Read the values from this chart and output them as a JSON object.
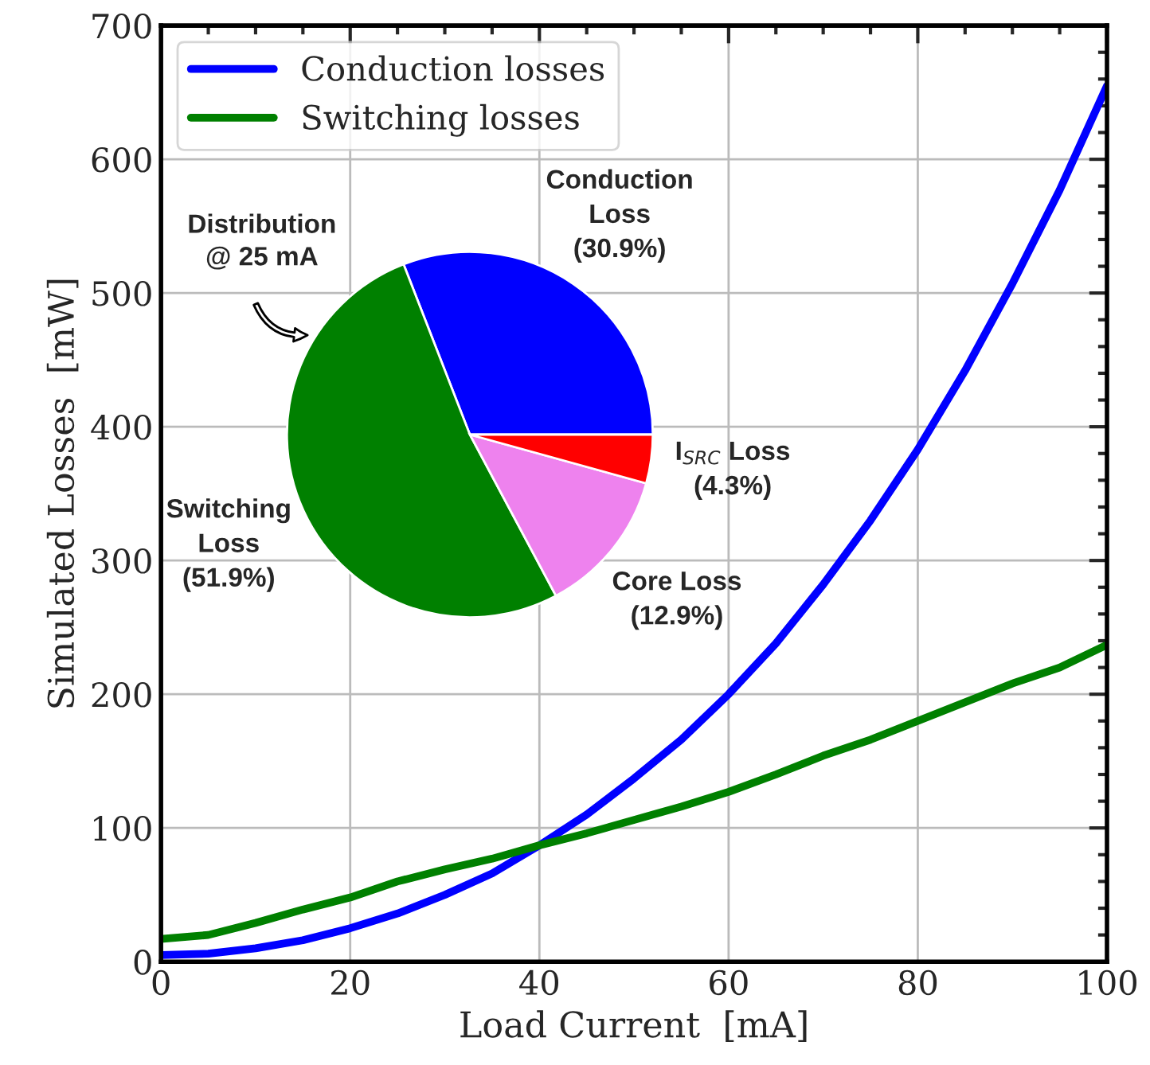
{
  "chart_data": [
    {
      "type": "line",
      "xlabel": "Load Current  [mA]",
      "ylabel": "Simulated Losses  [mW]",
      "x": [
        0,
        5,
        10,
        15,
        20,
        25,
        30,
        35,
        40,
        45,
        50,
        55,
        60,
        65,
        70,
        75,
        80,
        85,
        90,
        95,
        100
      ],
      "series": [
        {
          "name": "Conduction losses",
          "color": "#0000ff",
          "values": [
            5,
            6,
            10,
            16,
            25,
            36,
            50,
            66,
            87,
            110,
            137,
            166,
            200,
            238,
            282,
            330,
            383,
            442,
            507,
            577,
            655
          ]
        },
        {
          "name": "Switching losses",
          "color": "#008000",
          "values": [
            17,
            20,
            29,
            39,
            48,
            60,
            69,
            77,
            87,
            96,
            106,
            116,
            127,
            140,
            154,
            166,
            180,
            194,
            208,
            220,
            237
          ]
        }
      ],
      "xlim": [
        0,
        100
      ],
      "xticks": [
        0,
        20,
        40,
        60,
        80,
        100
      ],
      "ylim": [
        0,
        700
      ],
      "yticks": [
        0,
        100,
        200,
        300,
        400,
        500,
        600,
        700
      ],
      "grid": true,
      "legend": "top left",
      "marker": "none",
      "line_style": "solid"
    },
    {
      "type": "pie",
      "title": "Distribution\n@ 25 mA",
      "categories": [
        "Conduction\nLoss",
        "Switching\nLoss",
        "Core Loss",
        "I$_{SRC}$ Loss"
      ],
      "values": [
        30.9,
        51.9,
        12.9,
        4.3
      ],
      "value_labels": [
        "(30.9%)",
        "(51.9%)",
        "(12.9%)",
        "(4.3%)"
      ],
      "colors": [
        "#0000ff",
        "#008000",
        "#ee82ee",
        "#ff0000"
      ]
    }
  ]
}
